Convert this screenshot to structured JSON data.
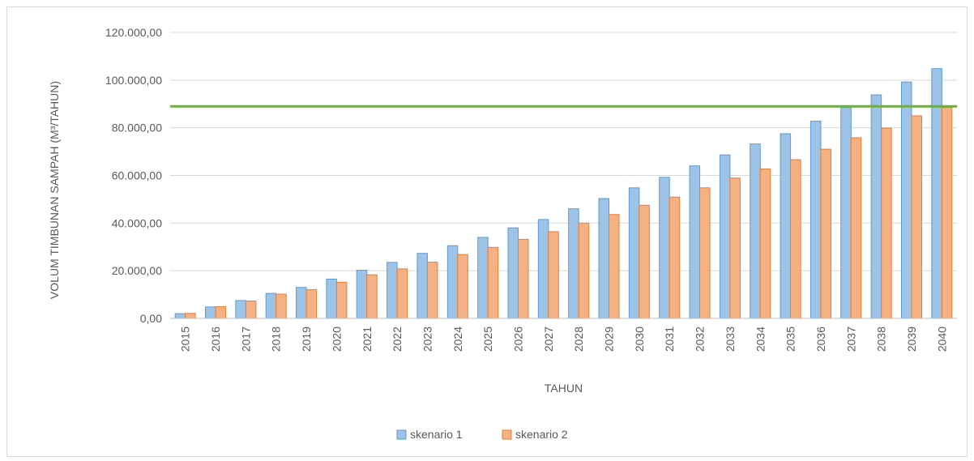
{
  "chart_data": {
    "type": "bar",
    "title": "",
    "xlabel": "TAHUN",
    "ylabel": "VOLUM TIMBUNAN SAMPAH (M³/TAHUN)",
    "ylim": [
      0,
      120000
    ],
    "yticks": [
      0,
      20000,
      40000,
      60000,
      80000,
      100000,
      120000
    ],
    "ytick_labels": [
      "0,00",
      "20.000,00",
      "40.000,00",
      "60.000,00",
      "80.000,00",
      "100.000,00",
      "120.000,00"
    ],
    "categories": [
      "2015",
      "2016",
      "2017",
      "2018",
      "2019",
      "2020",
      "2021",
      "2022",
      "2023",
      "2024",
      "2025",
      "2026",
      "2027",
      "2028",
      "2029",
      "2030",
      "2031",
      "2032",
      "2033",
      "2034",
      "2035",
      "2036",
      "2037",
      "2038",
      "2039",
      "2040"
    ],
    "series": [
      {
        "name": "skenario 1",
        "color": "#9dc3e6",
        "stroke": "#5b9bd5",
        "values": [
          2000,
          4800,
          7500,
          10500,
          13000,
          16500,
          20200,
          23500,
          27300,
          30500,
          34000,
          38000,
          41500,
          46000,
          50300,
          54800,
          59200,
          64000,
          68600,
          73200,
          77500,
          82800,
          88500,
          93800,
          99200,
          104800
        ]
      },
      {
        "name": "skenario 2",
        "color": "#f4b183",
        "stroke": "#ed7d31",
        "values": [
          2100,
          4900,
          7300,
          10200,
          12100,
          15200,
          18300,
          20800,
          23600,
          26800,
          29800,
          33200,
          36400,
          40000,
          43600,
          47500,
          50900,
          54800,
          58900,
          62700,
          66600,
          71000,
          75800,
          79900,
          85000,
          88500
        ]
      }
    ],
    "reference_line": {
      "value": 89000,
      "color": "#70ad47"
    },
    "grid": true,
    "legend_position": "bottom"
  }
}
